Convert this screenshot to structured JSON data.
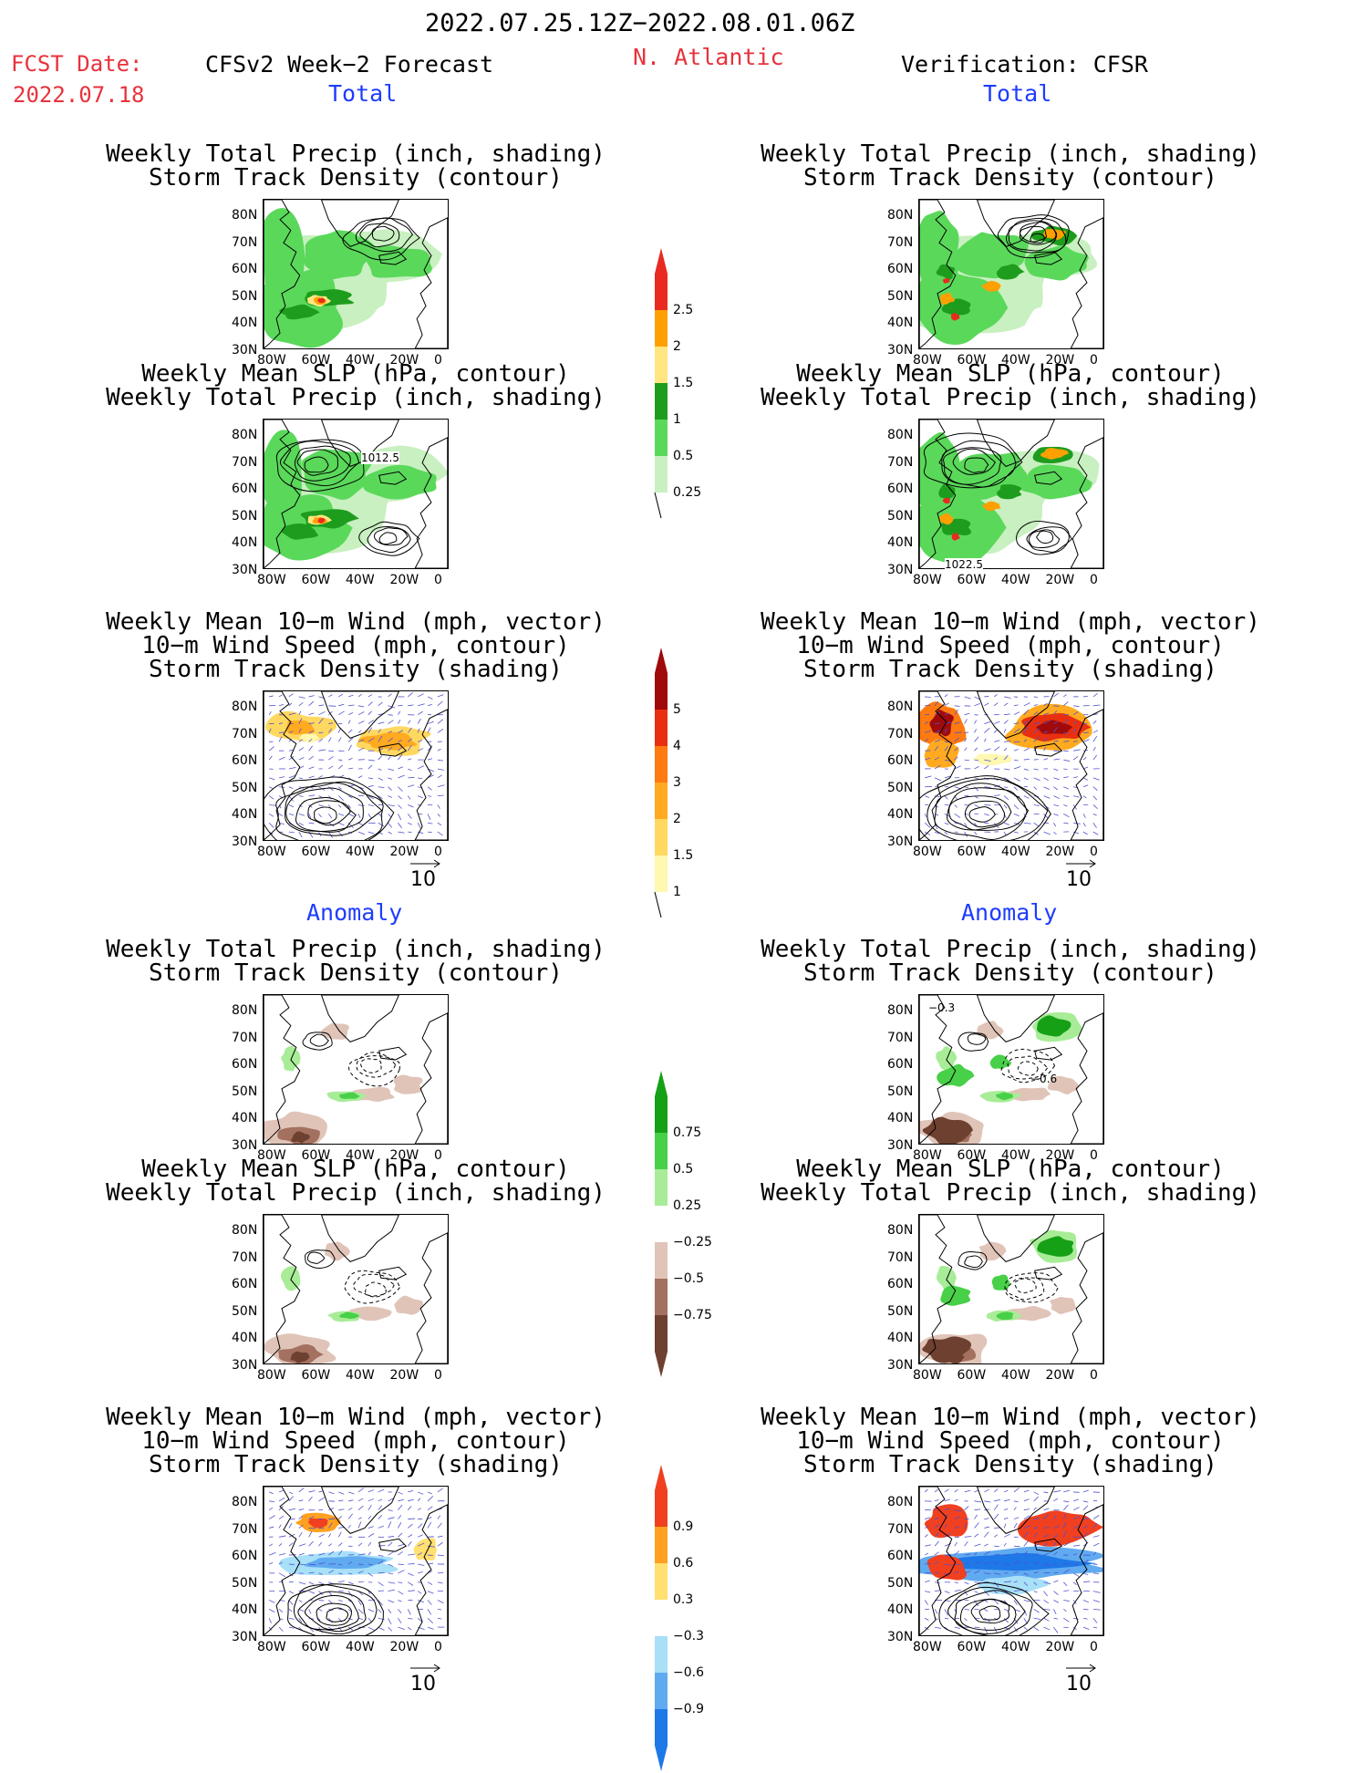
{
  "header": {
    "date_range": "2022.07.25.12Z−2022.08.01.06Z",
    "fcst_label": "FCST Date:",
    "fcst_date": "2022.07.18",
    "left_title": "CFSv2 Week−2 Forecast",
    "region": "N. Atlantic",
    "right_title": "Verification: CFSR"
  },
  "sections": {
    "total": "Total",
    "anomaly": "Anomaly"
  },
  "panel_titles": {
    "precip_storm": [
      "Weekly Total Precip (inch, shading)",
      "Storm Track Density (contour)"
    ],
    "slp_precip": [
      "Weekly Mean SLP (hPa, contour)",
      "Weekly Total Precip (inch, shading)"
    ],
    "wind_storm": [
      "Weekly Mean 10−m Wind (mph, vector)",
      "10−m Wind Speed (mph, contour)",
      "Storm Track Density (shading)"
    ]
  },
  "axes": {
    "lat_ticks": [
      "80N",
      "70N",
      "60N",
      "50N",
      "40N",
      "30N"
    ],
    "lon_ticks": [
      "80W",
      "60W",
      "40W",
      "20W",
      "0"
    ]
  },
  "contour_labels": {
    "fcst_total_slp": "1012.5",
    "cfsr_total_slp": "1022.5",
    "cfsr_anom_precip_a": "−0.3",
    "cfsr_anom_precip_b": "−0.6"
  },
  "vector_ref": "10",
  "colorbars": {
    "precip_total": [
      "0.25",
      "0.5",
      "1",
      "1.5",
      "2",
      "2.5"
    ],
    "storm_total": [
      "1",
      "1.5",
      "2",
      "3",
      "4",
      "5"
    ],
    "precip_anom": [
      "−0.75",
      "−0.5",
      "−0.25",
      "0.25",
      "0.5",
      "0.75"
    ],
    "storm_anom": [
      "−0.9",
      "−0.6",
      "−0.3",
      "0.3",
      "0.6",
      "0.9"
    ]
  },
  "colors": {
    "precip_total": [
      "#c8f0c0",
      "#5ad85a",
      "#1e9c1e",
      "#ffe680",
      "#ffa000",
      "#e82a20"
    ],
    "storm_total": [
      "#fff8b0",
      "#ffd860",
      "#ffaa20",
      "#ff7a10",
      "#e83010",
      "#a00a0a"
    ],
    "precip_anom_neg": [
      "#6e4030",
      "#a47060",
      "#e0c4b8"
    ],
    "precip_anom_pos": [
      "#a8ec98",
      "#48d048",
      "#16a016"
    ],
    "storm_anom_neg": [
      "#1e78e8",
      "#60aaf0",
      "#a8e0f8"
    ],
    "storm_anom_pos": [
      "#ffe070",
      "#ffa020",
      "#f04020"
    ]
  }
}
